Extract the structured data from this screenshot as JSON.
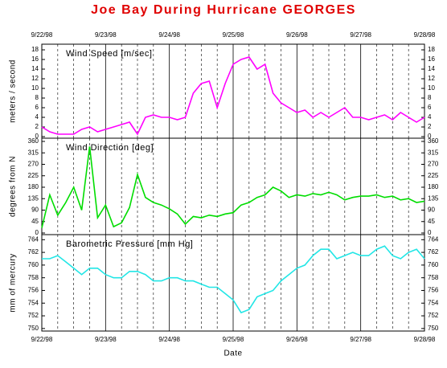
{
  "title": "Joe Bay During Hurricane GEORGES",
  "chart_data": [
    {
      "type": "line",
      "title": "Wind Speed [m/sec]",
      "y_label": "meters / second",
      "color": "#ff00ff",
      "grid": "x",
      "xlim": [
        0,
        6
      ],
      "xticks": [
        {
          "value": 0,
          "label": "9/22/98"
        },
        {
          "value": 1,
          "label": "9/23/98"
        },
        {
          "value": 2,
          "label": "9/24/98"
        },
        {
          "value": 3,
          "label": "9/25/98"
        },
        {
          "value": 4,
          "label": "9/26/98"
        },
        {
          "value": 5,
          "label": "9/27/98"
        },
        {
          "value": 6,
          "label": "9/28/98"
        }
      ],
      "ylim": [
        -0.33,
        19.17
      ],
      "yticks": [
        0,
        2,
        4,
        6,
        8,
        10,
        12,
        14,
        16,
        18
      ],
      "x": [
        0,
        0.125,
        0.25,
        0.375,
        0.5,
        0.625,
        0.75,
        0.875,
        1,
        1.125,
        1.25,
        1.375,
        1.5,
        1.625,
        1.75,
        1.875,
        2,
        2.125,
        2.25,
        2.375,
        2.5,
        2.625,
        2.75,
        2.875,
        3,
        3.125,
        3.25,
        3.375,
        3.5,
        3.625,
        3.75,
        3.875,
        4,
        4.125,
        4.25,
        4.375,
        4.5,
        4.625,
        4.75,
        4.875,
        5,
        5.125,
        5.25,
        5.375,
        5.5,
        5.625,
        5.75,
        5.875,
        6
      ],
      "values": [
        2,
        1,
        0.5,
        0.5,
        0.5,
        1.5,
        2,
        1,
        1.5,
        2,
        2.5,
        3,
        0.5,
        4,
        4.5,
        4,
        4,
        3.5,
        4,
        9,
        11,
        11.5,
        6,
        11,
        15,
        16,
        16.5,
        14,
        15,
        9,
        7,
        6,
        5,
        5.5,
        4,
        5,
        4,
        5,
        6,
        4,
        4,
        3.5,
        4,
        4.5,
        3.5,
        5,
        4,
        3,
        4
      ]
    },
    {
      "type": "line",
      "title": "Wind Direction [deg]",
      "y_label": "degrees from N",
      "color": "#00dd00",
      "grid": "x",
      "xlim": [
        0,
        6
      ],
      "xticks": [
        {
          "value": 0,
          "label": "9/22/98"
        },
        {
          "value": 1,
          "label": "9/23/98"
        },
        {
          "value": 2,
          "label": "9/24/98"
        },
        {
          "value": 3,
          "label": "9/25/98"
        },
        {
          "value": 4,
          "label": "9/26/98"
        },
        {
          "value": 5,
          "label": "9/27/98"
        },
        {
          "value": 6,
          "label": "9/28/98"
        }
      ],
      "ylim": [
        -6.3,
        372.6
      ],
      "yticks": [
        0,
        45,
        90,
        135,
        180,
        225,
        270,
        315,
        360
      ],
      "x": [
        0,
        0.125,
        0.25,
        0.375,
        0.5,
        0.625,
        0.75,
        0.875,
        1,
        1.125,
        1.25,
        1.375,
        1.5,
        1.625,
        1.75,
        1.875,
        2,
        2.125,
        2.25,
        2.375,
        2.5,
        2.625,
        2.75,
        2.875,
        3,
        3.125,
        3.25,
        3.375,
        3.5,
        3.625,
        3.75,
        3.875,
        4,
        4.125,
        4.25,
        4.375,
        4.5,
        4.625,
        4.75,
        4.875,
        5,
        5.125,
        5.25,
        5.375,
        5.5,
        5.625,
        5.75,
        5.875,
        6
      ],
      "values": [
        20,
        150,
        70,
        120,
        180,
        90,
        340,
        60,
        110,
        25,
        40,
        100,
        230,
        140,
        120,
        110,
        95,
        75,
        35,
        65,
        60,
        70,
        65,
        75,
        80,
        110,
        120,
        140,
        150,
        180,
        165,
        140,
        150,
        145,
        155,
        150,
        160,
        150,
        130,
        140,
        145,
        145,
        150,
        140,
        145,
        130,
        135,
        120,
        125
      ]
    },
    {
      "type": "line",
      "title": "Barometric Pressure [mm Hg]",
      "y_label": "mm  of mercury",
      "x_label": "Date",
      "color": "#22e6e6",
      "grid": "x",
      "xlim": [
        0,
        6
      ],
      "xticks": [
        {
          "value": 0,
          "label": "9/22/98"
        },
        {
          "value": 1,
          "label": "9/23/98"
        },
        {
          "value": 2,
          "label": "9/24/98"
        },
        {
          "value": 3,
          "label": "9/25/98"
        },
        {
          "value": 4,
          "label": "9/26/98"
        },
        {
          "value": 5,
          "label": "9/27/98"
        },
        {
          "value": 6,
          "label": "9/28/98"
        }
      ],
      "ylim": [
        749.6,
        764.8
      ],
      "yticks": [
        750,
        752,
        754,
        756,
        758,
        760,
        762,
        764
      ],
      "x": [
        0,
        0.125,
        0.25,
        0.375,
        0.5,
        0.625,
        0.75,
        0.875,
        1,
        1.125,
        1.25,
        1.375,
        1.5,
        1.625,
        1.75,
        1.875,
        2,
        2.125,
        2.25,
        2.375,
        2.5,
        2.625,
        2.75,
        2.875,
        3,
        3.125,
        3.25,
        3.375,
        3.5,
        3.625,
        3.75,
        3.875,
        4,
        4.125,
        4.25,
        4.375,
        4.5,
        4.625,
        4.75,
        4.875,
        5,
        5.125,
        5.25,
        5.375,
        5.5,
        5.625,
        5.75,
        5.875,
        6
      ],
      "values": [
        761,
        761,
        761.5,
        760.5,
        759.5,
        758.5,
        759.5,
        759.5,
        758.5,
        758,
        758,
        759,
        759,
        758.5,
        757.5,
        757.5,
        758,
        758,
        757.5,
        757.5,
        757,
        756.5,
        756.5,
        755.5,
        754.5,
        752.5,
        753,
        755,
        755.5,
        756,
        757.5,
        758.5,
        759.5,
        760,
        761.5,
        762.5,
        762.5,
        761,
        761.5,
        762,
        761.5,
        761.5,
        762.5,
        763,
        761.5,
        761,
        762,
        762.5,
        761
      ]
    }
  ]
}
